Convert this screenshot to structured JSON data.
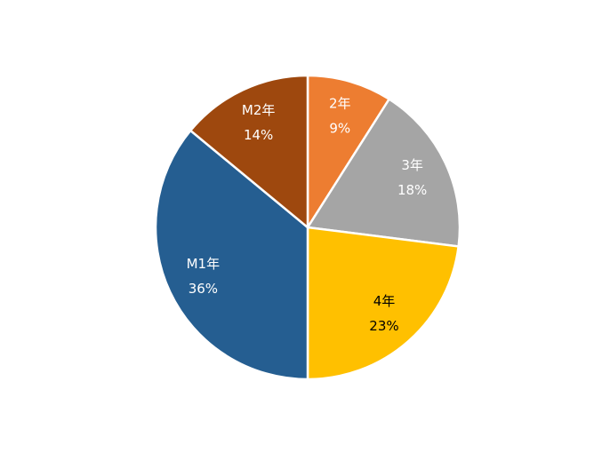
{
  "chart_data": {
    "type": "pie",
    "categories": [
      "2年",
      "3年",
      "4年",
      "M1年",
      "M2年"
    ],
    "values": [
      9,
      18,
      23,
      36,
      14
    ],
    "value_labels": [
      "9%",
      "18%",
      "23%",
      "36%",
      "14%"
    ],
    "colors": [
      "#ED7D31",
      "#A5A5A5",
      "#FFC000",
      "#255E91",
      "#9E480E"
    ]
  }
}
